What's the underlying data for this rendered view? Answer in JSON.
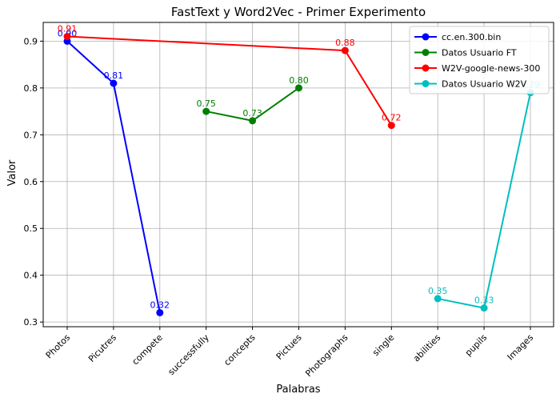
{
  "chart_data": {
    "type": "line",
    "title": "FastText y Word2Vec - Primer Experimento",
    "xlabel": "Palabras",
    "ylabel": "Valor",
    "categories": [
      "Photos",
      "Picutres",
      "compete",
      "successfully",
      "concepts",
      "Pictues",
      "Photographs",
      "single",
      "abilities",
      "pupils",
      "Images"
    ],
    "ylim": [
      0.29,
      0.94
    ],
    "yticks": [
      "0.3",
      "0.4",
      "0.5",
      "0.6",
      "0.7",
      "0.8",
      "0.9"
    ],
    "grid": true,
    "legend_position": "top-right",
    "series": [
      {
        "name": "cc.en.300.bin",
        "color": "#0000ff",
        "points": [
          {
            "x": "Photos",
            "y": 0.9,
            "label": "0.90"
          },
          {
            "x": "Picutres",
            "y": 0.81,
            "label": "0.81"
          },
          {
            "x": "compete",
            "y": 0.32,
            "label": "0.32"
          }
        ]
      },
      {
        "name": "Datos Usuario FT",
        "color": "#008000",
        "points": [
          {
            "x": "successfully",
            "y": 0.75,
            "label": "0.75"
          },
          {
            "x": "concepts",
            "y": 0.73,
            "label": "0.73"
          },
          {
            "x": "Pictues",
            "y": 0.8,
            "label": "0.80"
          }
        ]
      },
      {
        "name": "W2V-google-news-300",
        "color": "#ff0000",
        "points": [
          {
            "x": "Photos",
            "y": 0.91,
            "label": "0.91"
          },
          {
            "x": "Photographs",
            "y": 0.88,
            "label": "0.88"
          },
          {
            "x": "single",
            "y": 0.72,
            "label": "0.72"
          }
        ]
      },
      {
        "name": "Datos Usuario W2V",
        "color": "#00bfbf",
        "points": [
          {
            "x": "abilities",
            "y": 0.35,
            "label": "0.35"
          },
          {
            "x": "pupils",
            "y": 0.33,
            "label": "0.33"
          },
          {
            "x": "Images",
            "y": 0.79,
            "label": "0.79"
          }
        ]
      }
    ]
  }
}
